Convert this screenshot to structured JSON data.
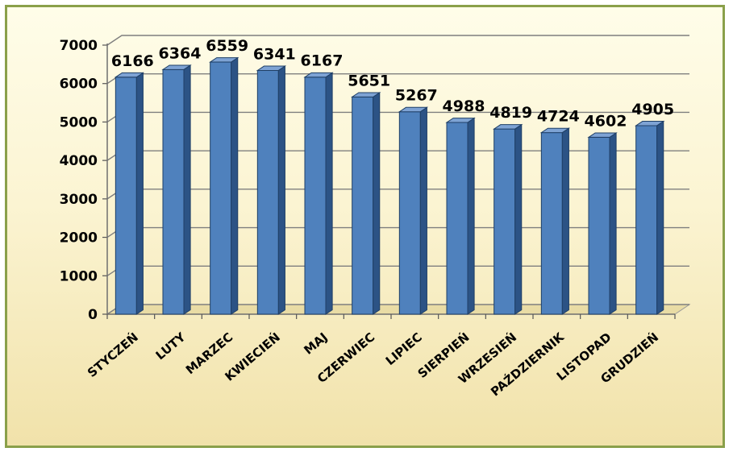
{
  "chart_data": {
    "type": "bar",
    "title": "",
    "xlabel": "",
    "ylabel": "",
    "categories": [
      "STYCZEŃ",
      "LUTY",
      "MARZEC",
      "KWIECIEŃ",
      "MAJ",
      "CZERWIEC",
      "LIPIEC",
      "SIERPIEŃ",
      "WRZESIEŃ",
      "PAŹDZIERNIK",
      "LISTOPAD",
      "GRUDZIEŃ"
    ],
    "values": [
      6166,
      6364,
      6559,
      6341,
      6167,
      5651,
      5267,
      4988,
      4819,
      4724,
      4602,
      4905
    ],
    "ylim": [
      0,
      7000
    ],
    "yticks": [
      "0",
      "1000",
      "2000",
      "3000",
      "4000",
      "5000",
      "6000",
      "7000"
    ],
    "grid": true,
    "legend": "none",
    "style": "3d-column",
    "colors": {
      "bar_front": "#4f81bd",
      "bar_side": "#2c5385",
      "bar_top": "#7ea3d4",
      "frame_border": "#8aa04a",
      "gridline": "#7f7f7f"
    }
  }
}
